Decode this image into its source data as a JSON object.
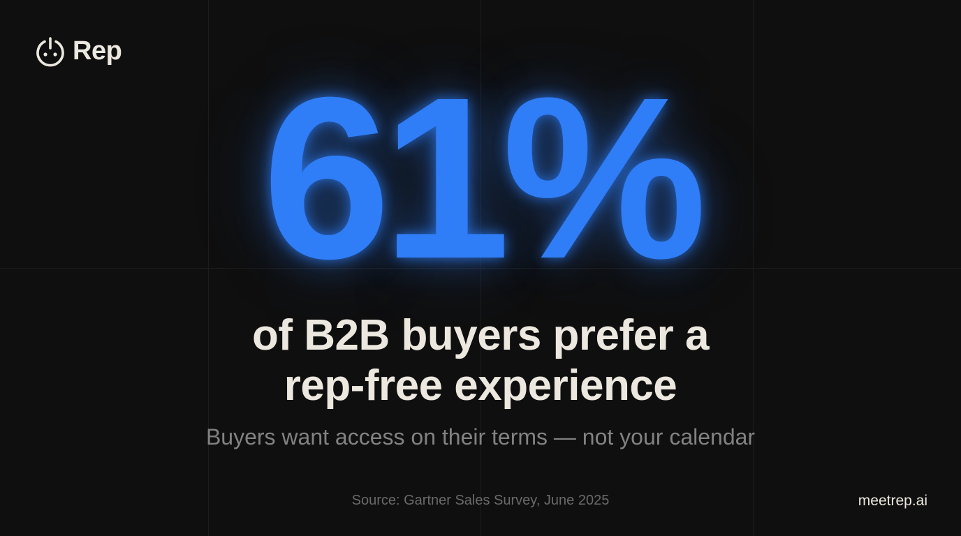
{
  "brand": {
    "name": "Rep"
  },
  "stat": {
    "value": "61%",
    "headline": [
      "of B2B buyers prefer a",
      "rep-free experience"
    ],
    "subtitle": "Buyers want access on their terms — not your calendar",
    "source": "Source: Gartner Sales Survey, June 2025"
  },
  "footer": {
    "url": "meetrep.ai"
  }
}
